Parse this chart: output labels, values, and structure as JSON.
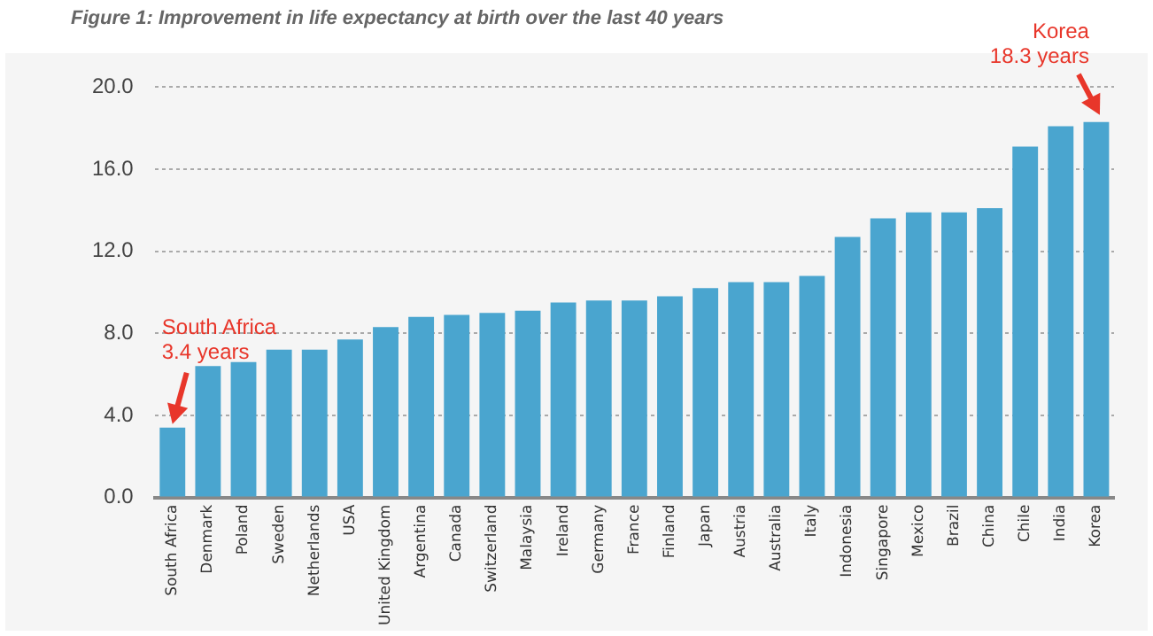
{
  "chart_data": {
    "type": "bar",
    "title": "Figure 1: Improvement in life expectancy at birth over the last 40 years",
    "categories": [
      "South Africa",
      "Denmark",
      "Poland",
      "Sweden",
      "Netherlands",
      "USA",
      "United Kingdom",
      "Argentina",
      "Canada",
      "Switzerland",
      "Malaysia",
      "Ireland",
      "Germany",
      "France",
      "Finland",
      "Japan",
      "Austria",
      "Australia",
      "Italy",
      "Indonesia",
      "Singapore",
      "Mexico",
      "Brazil",
      "China",
      "Chile",
      "India",
      "Korea"
    ],
    "values": [
      3.4,
      6.4,
      6.6,
      7.2,
      7.2,
      7.7,
      8.3,
      8.8,
      8.9,
      9.0,
      9.1,
      9.5,
      9.6,
      9.6,
      9.8,
      10.2,
      10.5,
      10.5,
      10.8,
      12.7,
      13.6,
      13.9,
      13.9,
      14.1,
      17.1,
      18.1,
      18.3
    ],
    "color": "#4aa5cf",
    "ylim": [
      0,
      20
    ],
    "yticks": [
      {
        "value": 0,
        "label": "0.0"
      },
      {
        "value": 4,
        "label": "4.0"
      },
      {
        "value": 8,
        "label": "8.0"
      },
      {
        "value": 12,
        "label": "12.0"
      },
      {
        "value": 16,
        "label": "16.0"
      },
      {
        "value": 20,
        "label": "20.0"
      }
    ],
    "grid": "y",
    "legend": false,
    "annotations": [
      {
        "text": "South Africa\n3.4 years",
        "x": "South Africa",
        "y": 3.4
      },
      {
        "text": "Korea\n18.3 years",
        "x": "Korea",
        "y": 18.3
      }
    ]
  }
}
